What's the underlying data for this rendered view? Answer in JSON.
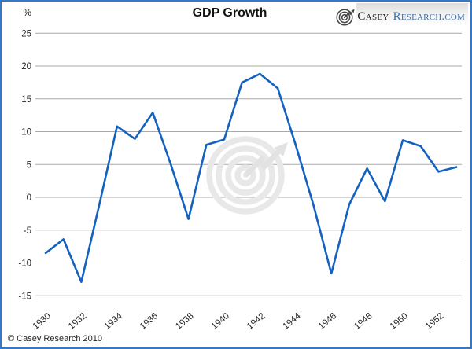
{
  "header": {
    "title": "GDP Growth",
    "y_unit_label": "%"
  },
  "logo": {
    "prefix": "Casey",
    "suffix": "Research.com"
  },
  "footer": {
    "copyright": "© Casey Research 2010"
  },
  "colors": {
    "line": "#1462bd",
    "border": "#3579c4",
    "grid": "#aaaaaa",
    "axis_text": "#262626",
    "watermark": "#e8e8e8",
    "watermark_arrow": "#e2e2e2",
    "logo_icon": "#474747",
    "logo_text_primary": "#1a1a1a",
    "logo_text_secondary": "#3a6ea5"
  },
  "chart_data": {
    "type": "line",
    "title": "GDP Growth",
    "ylabel": "%",
    "xlabel": "",
    "x": [
      1930,
      1931,
      1932,
      1933,
      1934,
      1935,
      1936,
      1937,
      1938,
      1939,
      1940,
      1941,
      1942,
      1943,
      1944,
      1945,
      1946,
      1947,
      1948,
      1949,
      1950,
      1951,
      1952,
      1953
    ],
    "series": [
      {
        "name": "GDP Growth",
        "values": [
          -8.5,
          -6.4,
          -12.9,
          -1.2,
          10.8,
          8.9,
          12.9,
          5.1,
          -3.3,
          8.0,
          8.8,
          17.5,
          18.8,
          16.6,
          8.0,
          -1.2,
          -11.6,
          -1.1,
          4.4,
          -0.6,
          8.7,
          7.8,
          3.9,
          4.6
        ]
      }
    ],
    "ylim": [
      -15,
      25
    ],
    "ytick_step": 5,
    "ytick_labels": [
      "25",
      "20",
      "15",
      "10",
      "5",
      "0",
      "-5",
      "-10",
      "-15"
    ],
    "xtick_labels": [
      "1930",
      "1932",
      "1934",
      "1936",
      "1938",
      "1940",
      "1942",
      "1944",
      "1946",
      "1948",
      "1950",
      "1952"
    ],
    "grid": true,
    "legend_position": "none",
    "line_color": "#1462bd"
  }
}
